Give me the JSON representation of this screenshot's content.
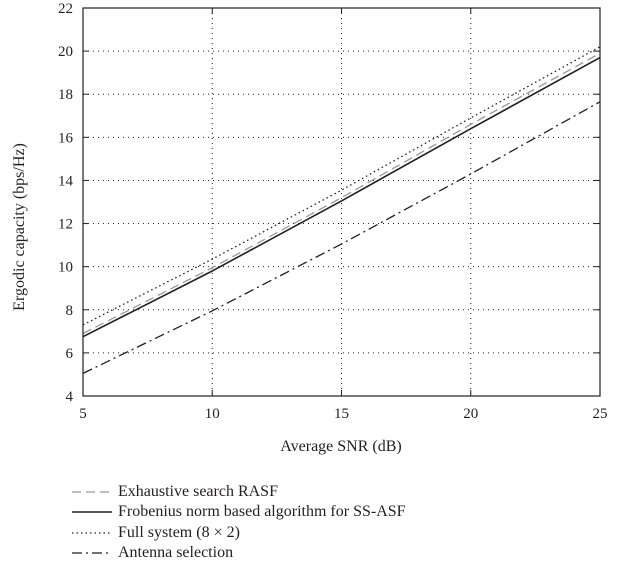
{
  "chart_data": {
    "type": "line",
    "xlabel": "Average SNR (dB)",
    "ylabel": "Ergodic capacity (bps/Hz)",
    "xlim": [
      5,
      25
    ],
    "ylim": [
      4,
      22
    ],
    "xticks": [
      5,
      10,
      15,
      20,
      25
    ],
    "yticks": [
      4,
      6,
      8,
      10,
      12,
      14,
      16,
      18,
      20,
      22
    ],
    "grid": true,
    "legend_position": "below",
    "x": [
      5,
      10,
      15,
      20,
      25
    ],
    "series": [
      {
        "name": "Exhaustive search RASF",
        "style": "dashed",
        "color": "#999999",
        "values": [
          6.9,
          9.95,
          13.2,
          16.6,
          19.9
        ]
      },
      {
        "name": "Frobenius norm based algorithm for SS-ASF",
        "style": "solid",
        "color": "#231f20",
        "values": [
          6.75,
          9.8,
          13.05,
          16.4,
          19.7
        ]
      },
      {
        "name": "Full system (8 × 2)",
        "style": "dotted",
        "color": "#231f20",
        "values": [
          7.3,
          10.35,
          13.55,
          16.9,
          20.2
        ]
      },
      {
        "name": "Antenna selection",
        "style": "dashdot",
        "color": "#231f20",
        "values": [
          5.05,
          7.95,
          11.05,
          14.3,
          17.65
        ]
      }
    ]
  }
}
